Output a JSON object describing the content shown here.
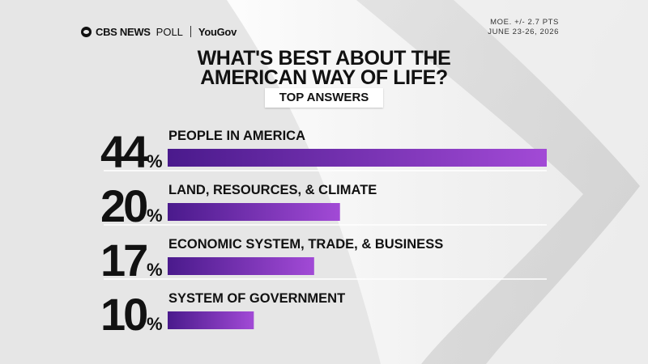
{
  "header": {
    "brand_news": "CBS NEWS",
    "brand_poll": "POLL",
    "brand_partner": "YouGov",
    "moe": "MOE. +/- 2.7 PTS",
    "dates": "JUNE 23-26, 2026"
  },
  "colors": {
    "bar_dark": "#4a1a8c",
    "bar_light": "#a24ad6",
    "text": "#111111",
    "background": "#e9e9e9"
  },
  "chart_data": {
    "type": "bar",
    "orientation": "horizontal",
    "title": "WHAT'S BEST ABOUT THE AMERICAN WAY OF LIFE?",
    "subtitle": "TOP ANSWERS",
    "categories": [
      "PEOPLE IN AMERICA",
      "LAND, RESOURCES, & CLIMATE",
      "ECONOMIC SYSTEM, TRADE, & BUSINESS",
      "SYSTEM OF GOVERNMENT"
    ],
    "values": [
      44,
      20,
      17,
      10
    ],
    "value_suffix": "%",
    "xlim": [
      0,
      44
    ],
    "grid": false,
    "legend": "none"
  }
}
